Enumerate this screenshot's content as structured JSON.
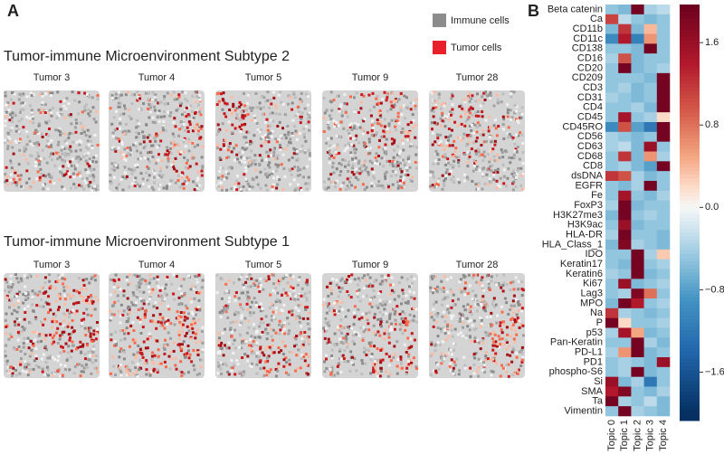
{
  "panel_a": {
    "panel_label": "A",
    "legend": [
      {
        "name": "Immune cells",
        "color": "#8c8c8c"
      },
      {
        "name": "Tumor cells",
        "color": "#e8202a"
      }
    ],
    "subtypes": [
      {
        "title": "Tumor-immune Microenvironment Subtype 2",
        "tumors": [
          "Tumor 3",
          "Tumor 4",
          "Tumor 5",
          "Tumor 9",
          "Tumor 28"
        ]
      },
      {
        "title": "Tumor-immune Microenvironment Subtype 1",
        "tumors": [
          "Tumor 3",
          "Tumor 4",
          "Tumor 5",
          "Tumor 9",
          "Tumor 28"
        ]
      }
    ]
  },
  "chart_data": {
    "type": "heatmap",
    "panel_label": "B",
    "colormap": "RdBu_r",
    "rows": [
      "Beta catenin",
      "Ca",
      "CD11b",
      "CD11c",
      "CD138",
      "CD16",
      "CD20",
      "CD209",
      "CD3",
      "CD31",
      "CD4",
      "CD45",
      "CD45RO",
      "CD56",
      "CD63",
      "CD68",
      "CD8",
      "dsDNA",
      "EGFR",
      "Fe",
      "FoxP3",
      "H3K27me3",
      "H3K9ac",
      "HLA-DR",
      "HLA_Class_1",
      "IDO",
      "Keratin17",
      "Keratin6",
      "Ki67",
      "Lag3",
      "MPO",
      "Na",
      "P",
      "p53",
      "Pan-Keratin",
      "PD-L1",
      "PD1",
      "phospho-S6",
      "Si",
      "SMA",
      "Ta",
      "Vimentin"
    ],
    "columns": [
      "Topic 0",
      "Topic 1",
      "Topic 2",
      "Topic 3",
      "Topic 4"
    ],
    "values": [
      [
        -0.5,
        -0.6,
        1.9,
        -0.4,
        -0.3
      ],
      [
        1.1,
        -0.3,
        -0.5,
        -0.6,
        -0.5
      ],
      [
        -0.6,
        1.2,
        -0.6,
        0.4,
        -0.5
      ],
      [
        -1.0,
        1.4,
        -1.1,
        0.6,
        -0.5
      ],
      [
        -0.5,
        -0.5,
        -0.6,
        1.9,
        -0.5
      ],
      [
        -0.4,
        1.0,
        -0.6,
        -0.5,
        -0.5
      ],
      [
        -0.5,
        1.9,
        -0.6,
        -0.5,
        -0.4
      ],
      [
        -0.5,
        -0.5,
        -0.5,
        -0.6,
        1.9
      ],
      [
        -0.5,
        -0.4,
        -0.6,
        -0.5,
        1.9
      ],
      [
        -0.4,
        -0.5,
        -0.6,
        -0.5,
        1.9
      ],
      [
        -0.5,
        -0.5,
        -0.4,
        -0.6,
        1.9
      ],
      [
        -0.5,
        1.5,
        -0.5,
        -0.4,
        0.2
      ],
      [
        -1.0,
        1.0,
        -0.8,
        -1.2,
        1.9
      ],
      [
        -0.4,
        -0.5,
        -0.6,
        -0.5,
        1.9
      ],
      [
        -0.4,
        -0.3,
        -0.6,
        1.6,
        -0.5
      ],
      [
        -0.5,
        1.2,
        -0.6,
        0.6,
        -0.4
      ],
      [
        -0.5,
        -0.4,
        -0.6,
        -0.8,
        1.9
      ],
      [
        1.2,
        1.0,
        -0.4,
        -0.6,
        -0.5
      ],
      [
        -0.5,
        -0.6,
        -0.4,
        1.9,
        -0.5
      ],
      [
        -0.5,
        1.5,
        -0.5,
        -0.6,
        -0.4
      ],
      [
        -0.4,
        1.9,
        -0.6,
        -0.5,
        -0.5
      ],
      [
        -0.6,
        1.9,
        -0.5,
        -0.4,
        -0.5
      ],
      [
        -0.5,
        1.6,
        -0.6,
        -0.5,
        -0.5
      ],
      [
        -0.4,
        1.9,
        -0.5,
        -0.5,
        -0.6
      ],
      [
        -0.6,
        1.8,
        -0.4,
        -0.5,
        -0.6
      ],
      [
        -0.5,
        -0.5,
        1.9,
        -0.4,
        0.3
      ],
      [
        -0.5,
        -0.6,
        1.9,
        -0.5,
        -0.4
      ],
      [
        -0.4,
        -0.5,
        1.9,
        -0.6,
        -0.5
      ],
      [
        -0.5,
        1.6,
        -0.6,
        -0.5,
        -0.4
      ],
      [
        -0.5,
        -0.4,
        1.8,
        0.8,
        -0.5
      ],
      [
        -0.6,
        1.9,
        1.4,
        -0.5,
        -0.4
      ],
      [
        1.2,
        -0.4,
        -0.5,
        -0.6,
        -0.5
      ],
      [
        1.9,
        0.2,
        -0.5,
        -0.5,
        -0.4
      ],
      [
        -0.4,
        1.5,
        0.5,
        -0.6,
        -0.5
      ],
      [
        -0.5,
        -0.5,
        1.9,
        -0.4,
        -0.6
      ],
      [
        -0.4,
        0.6,
        1.9,
        -0.6,
        -0.5
      ],
      [
        -0.5,
        -0.4,
        -0.5,
        -0.6,
        1.6
      ],
      [
        -0.5,
        -0.4,
        1.9,
        -0.6,
        -0.5
      ],
      [
        1.6,
        -0.6,
        -0.4,
        -1.2,
        -0.5
      ],
      [
        1.4,
        1.8,
        -0.5,
        -0.6,
        -0.4
      ],
      [
        1.9,
        -0.4,
        -0.5,
        -0.3,
        -0.6
      ],
      [
        -0.5,
        1.9,
        -0.4,
        -0.5,
        -0.6
      ]
    ],
    "zlim": [
      -2.07,
      1.97
    ],
    "zticks": [
      1.6,
      0.8,
      {
        "value": 0,
        "label": "0.0"
      },
      {
        "value": -0.8,
        "label": "−0.8"
      },
      {
        "value": -1.6,
        "label": "−1.6"
      }
    ]
  }
}
